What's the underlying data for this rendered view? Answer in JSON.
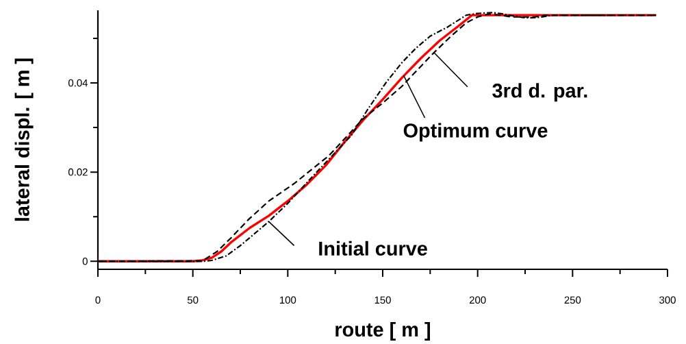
{
  "chart_data": {
    "type": "line",
    "xlabel": "route [ m ]",
    "ylabel": "lateral displ. [ m ]",
    "xlim": [
      0,
      300
    ],
    "ylim": [
      -0.0018,
      0.0563
    ],
    "xticks": [
      0,
      {
        "value": 25,
        "label": null
      },
      50,
      {
        "value": 75,
        "label": null
      },
      100,
      {
        "value": 125,
        "label": null
      },
      150,
      {
        "value": 175,
        "label": null
      },
      200,
      {
        "value": 225,
        "label": null
      },
      250,
      {
        "value": 275,
        "label": null
      },
      300
    ],
    "yticks": [
      0,
      {
        "value": 0.01,
        "label": null
      },
      0.02,
      {
        "value": 0.03,
        "label": null
      },
      0.04,
      {
        "value": 0.05,
        "label": null
      }
    ],
    "series": [
      {
        "color": "#ff0000",
        "line_style": "solid",
        "x": [
          0,
          50,
          55,
          60,
          65,
          70,
          80,
          90,
          100,
          110,
          120,
          130,
          140,
          150,
          160,
          170,
          180,
          190,
          197,
          210,
          250,
          294
        ],
        "values": [
          0,
          0,
          0.0002,
          0.0008,
          0.0022,
          0.0042,
          0.0075,
          0.0102,
          0.0135,
          0.0172,
          0.0215,
          0.0268,
          0.0318,
          0.0363,
          0.0411,
          0.0455,
          0.0495,
          0.0528,
          0.0552,
          0.0552,
          0.0552,
          0.0552
        ]
      },
      {
        "color": "#000000",
        "line_style": "dashdot",
        "x": [
          0,
          55,
          60,
          67.5,
          75,
          90,
          100,
          113,
          123,
          133.6,
          142,
          151.6,
          160,
          167.5,
          175,
          184,
          194,
          200,
          208,
          213,
          218,
          225,
          232,
          240,
          294
        ],
        "values": [
          0,
          0,
          0.0002,
          0.0012,
          0.0035,
          0.0089,
          0.013,
          0.019,
          0.0235,
          0.0283,
          0.034,
          0.04,
          0.0445,
          0.0478,
          0.0505,
          0.0525,
          0.0552,
          0.0556,
          0.0558,
          0.0555,
          0.0551,
          0.0546,
          0.0547,
          0.0552,
          0.0552
        ]
      },
      {
        "color": "#000000",
        "line_style": "dashed",
        "x": [
          1,
          55,
          62.8,
          70,
          79.4,
          90,
          103.6,
          112,
          121.7,
          130,
          139.7,
          150,
          160,
          168,
          177,
          186,
          194,
          200,
          206,
          212,
          218,
          230,
          236,
          292
        ],
        "values": [
          0,
          0.0001,
          0.0022,
          0.0052,
          0.0094,
          0.0135,
          0.0175,
          0.0204,
          0.0237,
          0.0275,
          0.032,
          0.0355,
          0.0392,
          0.0428,
          0.0468,
          0.0505,
          0.0535,
          0.0548,
          0.0555,
          0.0552,
          0.0548,
          0.0548,
          0.0552,
          0.0552
        ]
      }
    ],
    "annotations": [
      {
        "text": "Initial curve",
        "x": 90,
        "y": 0.0089
      },
      {
        "text": "Optimum curve",
        "x": 161,
        "y": 0.0417
      },
      {
        "text": "3rd d. par.",
        "x": 177,
        "y": 0.0468
      }
    ],
    "marker": "none"
  }
}
